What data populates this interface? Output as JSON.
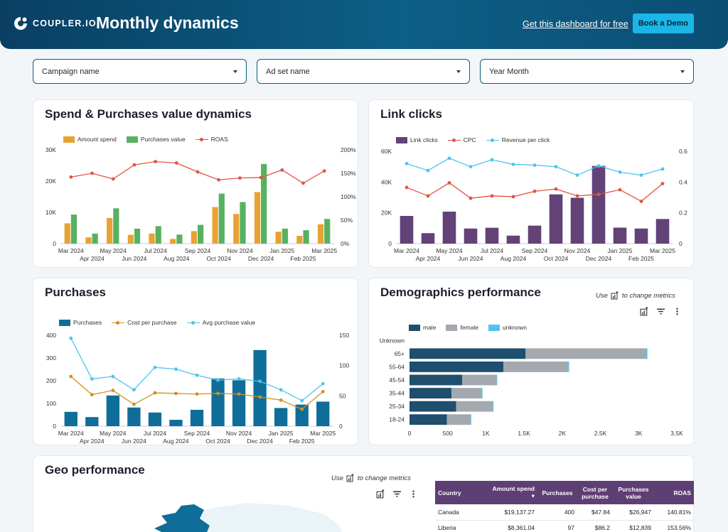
{
  "header": {
    "logo_text": "COUPLER.IO",
    "title": "Monthly dynamics",
    "free_link": "Get this dashboard for free",
    "demo_button": "Book a Demo"
  },
  "filters": [
    {
      "label": "Campaign name"
    },
    {
      "label": "Ad set name"
    },
    {
      "label": "Year Month"
    }
  ],
  "months_top": [
    "Mar 2024",
    "May 2024",
    "Jul 2024",
    "Sep 2024",
    "Nov 2024",
    "Jan 2025",
    "Mar 2025"
  ],
  "months_bottom": [
    "Apr 2024",
    "Jun 2024",
    "Aug 2024",
    "Oct 2024",
    "Dec 2024",
    "Feb 2025"
  ],
  "cards": {
    "spend": {
      "title": "Spend & Purchases value dynamics"
    },
    "clicks": {
      "title": "Link clicks"
    },
    "purchases": {
      "title": "Purchases"
    },
    "demographics": {
      "title": "Demographics performance",
      "hint_pre": "Use",
      "hint_post": "to change metrics"
    },
    "geo": {
      "title": "Geo performance",
      "hint_pre": "Use",
      "hint_post": "to change metrics"
    }
  },
  "chart_data": [
    {
      "type": "bar",
      "title": "Spend & Purchases value dynamics",
      "categories": [
        "Mar 2024",
        "Apr 2024",
        "May 2024",
        "Jun 2024",
        "Jul 2024",
        "Aug 2024",
        "Sep 2024",
        "Oct 2024",
        "Nov 2024",
        "Dec 2024",
        "Jan 2025",
        "Feb 2025",
        "Mar 2025"
      ],
      "series": [
        {
          "name": "Amount spend",
          "type": "bar",
          "axis": "left",
          "values": [
            6500,
            2000,
            8200,
            2800,
            3200,
            1500,
            4000,
            11700,
            9500,
            16500,
            3800,
            2500,
            6200
          ]
        },
        {
          "name": "Purchases value",
          "type": "bar",
          "axis": "left",
          "values": [
            9300,
            3200,
            11300,
            4800,
            5600,
            2900,
            6000,
            16000,
            13300,
            25500,
            4800,
            4300,
            7900
          ]
        },
        {
          "name": "ROAS",
          "type": "line",
          "axis": "right",
          "values": [
            142,
            150,
            138,
            168,
            175,
            172,
            153,
            136,
            140,
            141,
            157,
            129,
            155
          ]
        }
      ],
      "y_left": {
        "ticks": [
          "0",
          "10K",
          "20K",
          "30K"
        ],
        "ylim": [
          0,
          30000
        ]
      },
      "y_right": {
        "ticks": [
          "0%",
          "50%",
          "100%",
          "150%",
          "200%"
        ],
        "ylim": [
          0,
          200
        ]
      },
      "colors": {
        "Amount spend": "#e8a233",
        "Purchases value": "#58b160",
        "ROAS": "#e05543"
      }
    },
    {
      "type": "bar",
      "title": "Link clicks",
      "categories": [
        "Mar 2024",
        "Apr 2024",
        "May 2024",
        "Jun 2024",
        "Jul 2024",
        "Aug 2024",
        "Sep 2024",
        "Oct 2024",
        "Nov 2024",
        "Dec 2024",
        "Jan 2025",
        "Feb 2025",
        "Mar 2025"
      ],
      "series": [
        {
          "name": "Link clicks",
          "type": "bar",
          "axis": "left",
          "values": [
            18000,
            6800,
            20800,
            9800,
            10300,
            5200,
            11700,
            32000,
            29800,
            50500,
            10400,
            9800,
            16000
          ]
        },
        {
          "name": "CPC",
          "type": "line",
          "axis": "right",
          "values": [
            0.365,
            0.31,
            0.395,
            0.295,
            0.31,
            0.305,
            0.34,
            0.355,
            0.31,
            0.32,
            0.35,
            0.275,
            0.39
          ]
        },
        {
          "name": "Revenue per click",
          "type": "line",
          "axis": "right",
          "values": [
            0.52,
            0.475,
            0.555,
            0.5,
            0.545,
            0.515,
            0.51,
            0.5,
            0.445,
            0.505,
            0.465,
            0.445,
            0.485
          ]
        }
      ],
      "y_left": {
        "ticks": [
          "0",
          "20K",
          "40K",
          "60K"
        ],
        "ylim": [
          0,
          60000
        ]
      },
      "y_right": {
        "ticks": [
          "0",
          "0.2",
          "0.4",
          "0.6"
        ],
        "ylim": [
          0,
          0.6
        ]
      },
      "colors": {
        "Link clicks": "#624277",
        "CPC": "#e05543",
        "Revenue per click": "#4fc3f0"
      }
    },
    {
      "type": "bar",
      "title": "Purchases",
      "categories": [
        "Mar 2024",
        "Apr 2024",
        "May 2024",
        "Jun 2024",
        "Jul 2024",
        "Aug 2024",
        "Sep 2024",
        "Oct 2024",
        "Nov 2024",
        "Dec 2024",
        "Jan 2025",
        "Feb 2025",
        "Mar 2025"
      ],
      "series": [
        {
          "name": "Purchases",
          "type": "bar",
          "axis": "left",
          "values": [
            63,
            40,
            135,
            82,
            60,
            28,
            72,
            210,
            202,
            335,
            80,
            95,
            108
          ]
        },
        {
          "name": "Cost per purchase",
          "type": "line",
          "axis": "right",
          "values": [
            82,
            52,
            59,
            36,
            55,
            54,
            53,
            54,
            53,
            48,
            43,
            28,
            57
          ]
        },
        {
          "name": "Avg purchase value",
          "type": "line",
          "axis": "right",
          "values": [
            145,
            78,
            82,
            60,
            97,
            94,
            84,
            76,
            78,
            74,
            60,
            42,
            70
          ]
        }
      ],
      "y_left": {
        "ticks": [
          "0",
          "100",
          "200",
          "300",
          "400"
        ],
        "ylim": [
          0,
          400
        ]
      },
      "y_right": {
        "ticks": [
          "0",
          "50",
          "100",
          "150"
        ],
        "ylim": [
          0,
          150
        ]
      },
      "colors": {
        "Purchases": "#0f6e99",
        "Cost per purchase": "#d2901e",
        "Avg purchase value": "#4fc3f0"
      }
    },
    {
      "type": "bar",
      "orientation": "horizontal-stacked",
      "title": "Demographics performance",
      "categories": [
        "Unknown",
        "65+",
        "55-64",
        "45-54",
        "35-44",
        "25-34",
        "18-24"
      ],
      "series": [
        {
          "name": "male",
          "values": [
            0,
            1520,
            1230,
            690,
            550,
            610,
            490
          ]
        },
        {
          "name": "female",
          "values": [
            0,
            1580,
            850,
            450,
            400,
            480,
            310
          ]
        },
        {
          "name": "unknown",
          "values": [
            0,
            15,
            10,
            8,
            6,
            10,
            8
          ]
        }
      ],
      "x_ticks": [
        "0",
        "500",
        "1K",
        "1.5K",
        "2K",
        "2.5K",
        "3K",
        "3.5K"
      ],
      "xlim": [
        0,
        3500
      ],
      "colors": {
        "male": "#1f4e6e",
        "female": "#a3a9ae",
        "unknown": "#4fc3f0"
      }
    }
  ],
  "geo_table": {
    "columns": [
      "Country",
      "Amount spend",
      "Purchases",
      "Cost per purchase",
      "Purchases value",
      "ROAS"
    ],
    "rows": [
      [
        "Canada",
        "$19,137.27",
        "400",
        "$47.84",
        "$26,947",
        "140.81%"
      ],
      [
        "Liberia",
        "$8,361.04",
        "97",
        "$86.2",
        "$12,839",
        "153.56%"
      ]
    ]
  }
}
